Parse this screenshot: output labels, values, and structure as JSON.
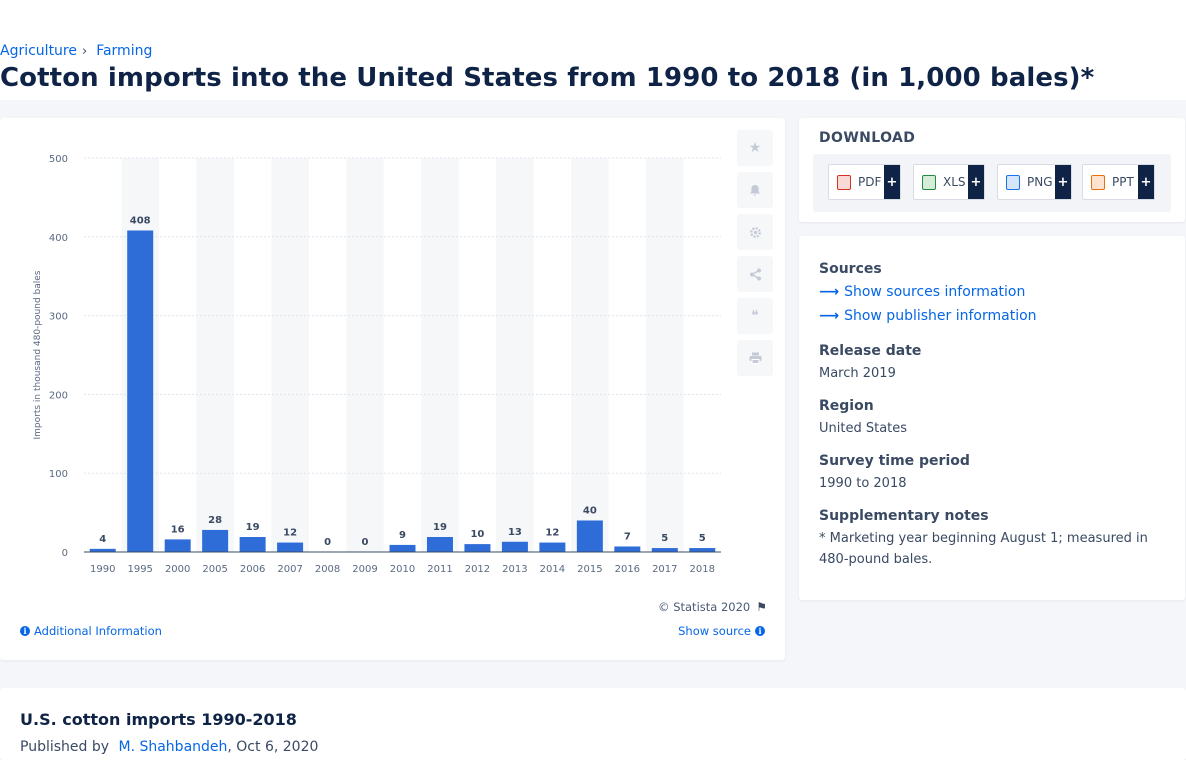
{
  "breadcrumb": {
    "items": [
      "Agriculture",
      "Farming"
    ],
    "separator": "›"
  },
  "page_title": "Cotton imports into the United States from 1990 to 2018 (in 1,000 bales)*",
  "chart_data": {
    "type": "bar",
    "categories": [
      "1990",
      "1995",
      "2000",
      "2005",
      "2006",
      "2007",
      "2008",
      "2009",
      "2010",
      "2011",
      "2012",
      "2013",
      "2014",
      "2015",
      "2016",
      "2017",
      "2018"
    ],
    "values": [
      4,
      408,
      16,
      28,
      19,
      12,
      0,
      0,
      9,
      19,
      10,
      13,
      12,
      40,
      7,
      5,
      5
    ],
    "ylabel": "Imports in thousand 480-pound bales",
    "ylim": [
      0,
      500
    ],
    "yticks": [
      0,
      100,
      200,
      300,
      400,
      500
    ],
    "bar_color": "#2e6cd8",
    "grid": true,
    "data_labels": true
  },
  "chart_footer": {
    "credit": "© Statista 2020",
    "additional_info": "Additional Information",
    "show_source": "Show source"
  },
  "tools": [
    "star-icon",
    "bell-icon",
    "gear-icon",
    "share-icon",
    "quote-icon",
    "print-icon"
  ],
  "download": {
    "title": "DOWNLOAD",
    "buttons": [
      {
        "label": "PDF",
        "color": "#d93025"
      },
      {
        "label": "XLS",
        "color": "#1e8e3e"
      },
      {
        "label": "PNG",
        "color": "#1a73e8"
      },
      {
        "label": "PPT",
        "color": "#e8710a"
      }
    ],
    "plus": "+"
  },
  "info": {
    "sources_label": "Sources",
    "sources_link": "Show sources information",
    "publisher_link": "Show publisher information",
    "release_label": "Release date",
    "release_value": "March 2019",
    "region_label": "Region",
    "region_value": "United States",
    "period_label": "Survey time period",
    "period_value": "1990 to 2018",
    "notes_label": "Supplementary notes",
    "notes_value": "* Marketing year beginning August 1; measured in 480-pound bales."
  },
  "publication": {
    "title": "U.S. cotton imports 1990-2018",
    "published_by_prefix": "Published by",
    "author": "M. Shahbandeh",
    "date": ", Oct 6, 2020"
  },
  "colors": {
    "accent": "#0666e5",
    "navy": "#0f2346"
  }
}
